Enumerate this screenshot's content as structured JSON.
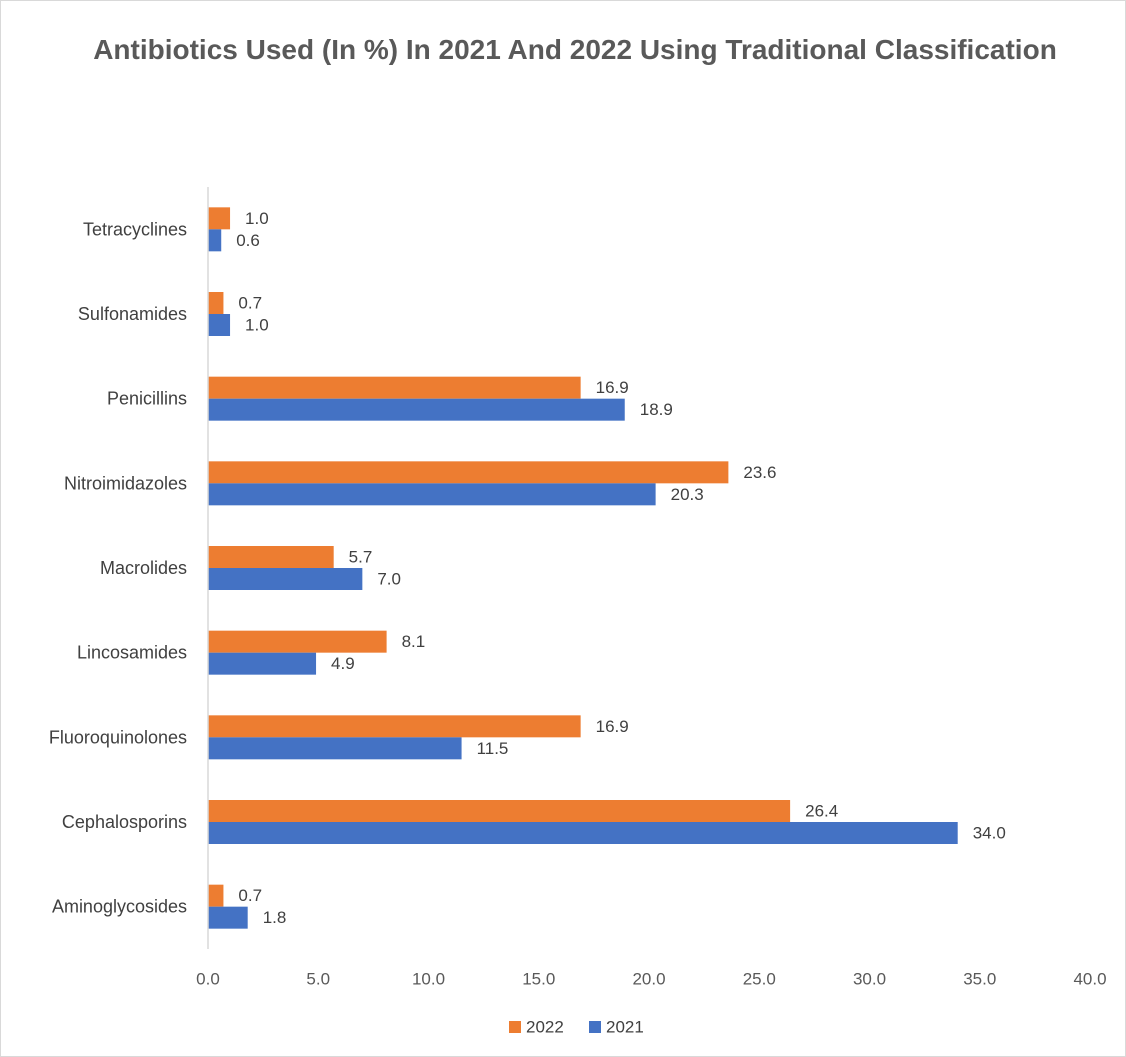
{
  "chart_data": {
    "type": "bar",
    "orientation": "horizontal",
    "title": "Antibiotics Used (In %) In 2021 And 2022 Using Traditional Classification",
    "categories": [
      "Tetracyclines",
      "Sulfonamides",
      "Penicillins",
      "Nitroimidazoles",
      "Macrolides",
      "Lincosamides",
      "Fluoroquinolones",
      "Cephalosporins",
      "Aminoglycosides"
    ],
    "series": [
      {
        "name": "2022",
        "color": "#ED7D31",
        "values": [
          1.0,
          0.7,
          16.9,
          23.6,
          5.7,
          8.1,
          16.9,
          26.4,
          0.7
        ],
        "labels": [
          "1.0",
          "0.7",
          "16.9",
          "23.6",
          "5.7",
          "8.1",
          "16.9",
          "26.4",
          "0.7"
        ]
      },
      {
        "name": "2021",
        "color": "#4472C4",
        "values": [
          0.6,
          1.0,
          18.9,
          20.3,
          7.0,
          4.9,
          11.5,
          34.0,
          1.8
        ],
        "labels": [
          "0.6",
          "1.0",
          "18.9",
          "20.3",
          "7.0",
          "4.9",
          "11.5",
          "34.0",
          "1.8"
        ]
      }
    ],
    "xlim": [
      0,
      40
    ],
    "xticks": [
      "0.0",
      "5.0",
      "10.0",
      "15.0",
      "20.0",
      "25.0",
      "30.0",
      "35.0",
      "40.0"
    ],
    "xlabel": "",
    "ylabel": "",
    "grid": false,
    "legend": "bottom"
  }
}
